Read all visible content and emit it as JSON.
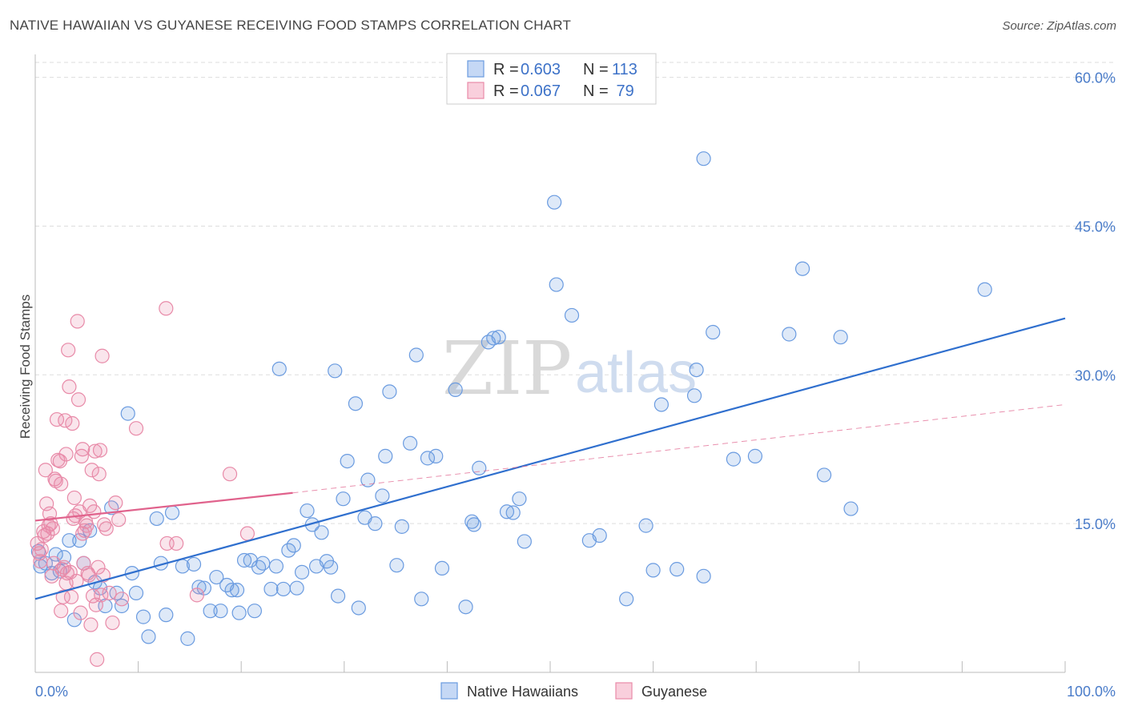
{
  "title": "NATIVE HAWAIIAN VS GUYANESE RECEIVING FOOD STAMPS CORRELATION CHART",
  "source": "Source: ZipAtlas.com",
  "watermark": {
    "zip": "ZIP",
    "atlas": "atlas"
  },
  "colors": {
    "blue": "#6a9be0",
    "blue_line": "#2f6fce",
    "pink": "#e88aa8",
    "pink_line": "#e0628c",
    "grid": "#dddddd",
    "axis_text": "#4a7cc9"
  },
  "legend": {
    "rows": [
      {
        "r_label": "R = ",
        "r_value": "0.603",
        "n_label": "N = ",
        "n_value": "113"
      },
      {
        "r_label": "R = ",
        "r_value": "0.067",
        "n_label": "N = ",
        "n_value": " 79"
      }
    ]
  },
  "chart_data": {
    "type": "scatter",
    "title": "NATIVE HAWAIIAN VS GUYANESE RECEIVING FOOD STAMPS CORRELATION CHART",
    "xlabel": "",
    "ylabel": "Receiving Food Stamps",
    "xlim": [
      0,
      100
    ],
    "ylim": [
      0,
      61.5
    ],
    "x_tick_labels": [
      "0.0%",
      "100.0%"
    ],
    "y_ticks": [
      15,
      30,
      45,
      60
    ],
    "y_tick_labels": [
      "15.0%",
      "30.0%",
      "45.0%",
      "60.0%"
    ],
    "grid": true,
    "legend_position": "bottom",
    "series": [
      {
        "name": "Native Hawaiians",
        "color": "#6a9be0",
        "trend": {
          "x": [
            0,
            100
          ],
          "y": [
            7.4,
            35.7
          ]
        },
        "points": [
          [
            0.5,
            10.7
          ],
          [
            1.0,
            11.0
          ],
          [
            1.6,
            10.0
          ],
          [
            2.0,
            11.9
          ],
          [
            2.4,
            10.2
          ],
          [
            2.8,
            11.6
          ],
          [
            3.3,
            13.3
          ],
          [
            3.8,
            5.3
          ],
          [
            4.3,
            13.3
          ],
          [
            4.7,
            11.0
          ],
          [
            5.3,
            14.3
          ],
          [
            5.8,
            9.1
          ],
          [
            6.3,
            8.5
          ],
          [
            6.8,
            6.7
          ],
          [
            7.4,
            16.6
          ],
          [
            7.9,
            8.0
          ],
          [
            8.4,
            6.7
          ],
          [
            9.0,
            26.1
          ],
          [
            9.4,
            10.0
          ],
          [
            9.8,
            8.0
          ],
          [
            10.5,
            5.6
          ],
          [
            11.0,
            3.6
          ],
          [
            11.8,
            15.5
          ],
          [
            12.2,
            11.0
          ],
          [
            12.7,
            5.8
          ],
          [
            13.3,
            16.1
          ],
          [
            14.3,
            10.7
          ],
          [
            14.8,
            3.4
          ],
          [
            15.4,
            10.9
          ],
          [
            15.9,
            8.6
          ],
          [
            16.4,
            8.5
          ],
          [
            17.0,
            6.2
          ],
          [
            17.6,
            9.6
          ],
          [
            18.0,
            6.2
          ],
          [
            18.6,
            8.8
          ],
          [
            19.1,
            8.3
          ],
          [
            19.6,
            8.3
          ],
          [
            19.8,
            6.0
          ],
          [
            20.3,
            11.3
          ],
          [
            20.9,
            11.3
          ],
          [
            21.3,
            6.2
          ],
          [
            21.7,
            10.6
          ],
          [
            22.1,
            11.0
          ],
          [
            22.9,
            8.4
          ],
          [
            23.4,
            10.7
          ],
          [
            23.7,
            30.6
          ],
          [
            24.1,
            8.4
          ],
          [
            24.6,
            12.3
          ],
          [
            25.1,
            12.8
          ],
          [
            25.4,
            8.5
          ],
          [
            25.9,
            10.1
          ],
          [
            26.4,
            16.3
          ],
          [
            26.9,
            14.9
          ],
          [
            27.3,
            10.7
          ],
          [
            27.8,
            14.1
          ],
          [
            28.3,
            11.2
          ],
          [
            28.7,
            10.6
          ],
          [
            29.1,
            30.4
          ],
          [
            29.4,
            7.7
          ],
          [
            29.9,
            17.5
          ],
          [
            30.3,
            21.3
          ],
          [
            31.1,
            27.1
          ],
          [
            31.4,
            6.5
          ],
          [
            32.0,
            15.6
          ],
          [
            32.3,
            19.4
          ],
          [
            33.0,
            15.0
          ],
          [
            33.7,
            17.8
          ],
          [
            34.0,
            21.8
          ],
          [
            34.4,
            28.3
          ],
          [
            35.1,
            10.8
          ],
          [
            35.6,
            14.7
          ],
          [
            36.4,
            23.1
          ],
          [
            37.0,
            32.0
          ],
          [
            37.5,
            7.4
          ],
          [
            38.1,
            21.6
          ],
          [
            38.9,
            21.8
          ],
          [
            39.5,
            10.5
          ],
          [
            40.8,
            28.5
          ],
          [
            41.8,
            6.6
          ],
          [
            42.4,
            15.2
          ],
          [
            42.6,
            14.9
          ],
          [
            43.1,
            20.6
          ],
          [
            44.0,
            33.3
          ],
          [
            44.5,
            33.7
          ],
          [
            45.0,
            33.8
          ],
          [
            45.8,
            16.2
          ],
          [
            46.4,
            16.1
          ],
          [
            47.0,
            17.5
          ],
          [
            47.5,
            13.2
          ],
          [
            50.6,
            39.1
          ],
          [
            50.4,
            47.4
          ],
          [
            52.1,
            36.0
          ],
          [
            53.8,
            13.3
          ],
          [
            54.8,
            13.8
          ],
          [
            57.4,
            7.4
          ],
          [
            59.3,
            14.8
          ],
          [
            60.0,
            10.3
          ],
          [
            60.8,
            27.0
          ],
          [
            62.3,
            10.4
          ],
          [
            64.0,
            27.9
          ],
          [
            64.2,
            30.5
          ],
          [
            64.9,
            9.7
          ],
          [
            64.9,
            51.8
          ],
          [
            65.8,
            34.3
          ],
          [
            67.8,
            21.5
          ],
          [
            69.9,
            21.8
          ],
          [
            73.2,
            34.1
          ],
          [
            74.5,
            40.7
          ],
          [
            76.6,
            19.9
          ],
          [
            78.2,
            33.8
          ],
          [
            79.2,
            16.5
          ],
          [
            92.2,
            38.6
          ],
          [
            0.3,
            12.2
          ]
        ]
      },
      {
        "name": "Guyanese",
        "color": "#e88aa8",
        "trend": {
          "x": [
            0,
            25
          ],
          "y": [
            15.3,
            18.1
          ]
        },
        "trend_ext": {
          "x": [
            25,
            100
          ],
          "y": [
            18.1,
            27.0
          ]
        },
        "points": [
          [
            0.2,
            13.0
          ],
          [
            0.4,
            12.0
          ],
          [
            0.6,
            12.4
          ],
          [
            0.8,
            14.2
          ],
          [
            0.9,
            13.8
          ],
          [
            1.0,
            20.4
          ],
          [
            1.1,
            17.0
          ],
          [
            1.3,
            14.8
          ],
          [
            1.5,
            15.0
          ],
          [
            1.6,
            9.7
          ],
          [
            1.7,
            14.5
          ],
          [
            1.8,
            11.0
          ],
          [
            2.0,
            19.3
          ],
          [
            2.1,
            25.5
          ],
          [
            2.2,
            21.4
          ],
          [
            2.4,
            21.3
          ],
          [
            2.5,
            19.0
          ],
          [
            2.5,
            6.2
          ],
          [
            2.6,
            10.4
          ],
          [
            2.7,
            7.6
          ],
          [
            2.9,
            25.4
          ],
          [
            3.0,
            22.0
          ],
          [
            3.1,
            10.0
          ],
          [
            3.2,
            32.5
          ],
          [
            3.3,
            28.8
          ],
          [
            3.4,
            10.1
          ],
          [
            3.5,
            7.6
          ],
          [
            3.6,
            25.1
          ],
          [
            3.7,
            15.5
          ],
          [
            3.8,
            17.6
          ],
          [
            3.9,
            15.8
          ],
          [
            4.0,
            9.2
          ],
          [
            4.1,
            35.4
          ],
          [
            4.2,
            27.5
          ],
          [
            4.3,
            16.2
          ],
          [
            4.4,
            6.0
          ],
          [
            4.5,
            21.8
          ],
          [
            4.6,
            22.5
          ],
          [
            4.7,
            11.0
          ],
          [
            4.8,
            14.3
          ],
          [
            4.9,
            15.2
          ],
          [
            5.0,
            14.8
          ],
          [
            5.1,
            10.0
          ],
          [
            5.2,
            9.8
          ],
          [
            5.4,
            4.8
          ],
          [
            5.5,
            20.4
          ],
          [
            5.6,
            7.7
          ],
          [
            5.7,
            16.2
          ],
          [
            5.8,
            22.3
          ],
          [
            5.9,
            6.8
          ],
          [
            6.0,
            1.3
          ],
          [
            6.1,
            10.6
          ],
          [
            6.2,
            20.0
          ],
          [
            6.3,
            22.4
          ],
          [
            6.4,
            7.8
          ],
          [
            6.5,
            31.9
          ],
          [
            6.7,
            14.9
          ],
          [
            6.9,
            14.5
          ],
          [
            7.2,
            8.0
          ],
          [
            7.5,
            5.0
          ],
          [
            7.8,
            17.1
          ],
          [
            8.1,
            15.4
          ],
          [
            8.4,
            7.4
          ],
          [
            9.8,
            24.6
          ],
          [
            12.7,
            36.7
          ],
          [
            12.8,
            13.0
          ],
          [
            13.7,
            13.0
          ],
          [
            15.7,
            7.8
          ],
          [
            18.9,
            20.0
          ],
          [
            20.6,
            14.0
          ],
          [
            1.2,
            14.0
          ],
          [
            1.4,
            16.0
          ],
          [
            2.8,
            10.6
          ],
          [
            3.0,
            9.0
          ],
          [
            4.6,
            14.0
          ],
          [
            5.3,
            16.8
          ],
          [
            0.5,
            11.2
          ],
          [
            1.9,
            19.5
          ],
          [
            6.6,
            9.8
          ]
        ]
      }
    ]
  }
}
